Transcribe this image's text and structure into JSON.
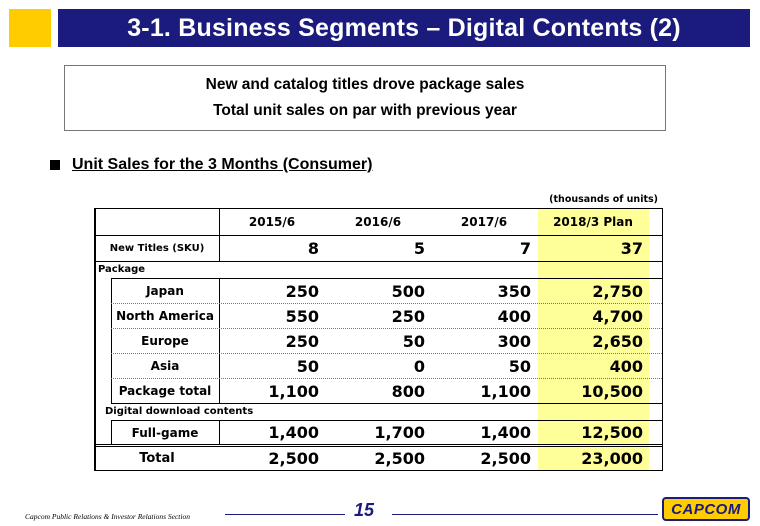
{
  "header": {
    "title": "3-1. Business Segments – Digital Contents (2)"
  },
  "headline": {
    "line1": "New and catalog titles drove package sales",
    "line2": "Total unit sales on par with previous year"
  },
  "section": {
    "label": "Unit Sales for the 3 Months (Consumer)"
  },
  "table": {
    "unit_note": "(thousands of units)",
    "columns": [
      "2015/6",
      "2016/6",
      "2017/6",
      "2018/3 Plan"
    ],
    "highlight_color": "#ffff99",
    "new_titles": {
      "label": "New Titles (SKU)",
      "values": [
        "8",
        "5",
        "7",
        "37"
      ]
    },
    "package_group": "Package",
    "package_rows": [
      {
        "label": "Japan",
        "values": [
          "250",
          "500",
          "350",
          "2,750"
        ]
      },
      {
        "label": "North America",
        "values": [
          "550",
          "250",
          "400",
          "4,700"
        ]
      },
      {
        "label": "Europe",
        "values": [
          "250",
          "50",
          "300",
          "2,650"
        ]
      },
      {
        "label": "Asia",
        "values": [
          "50",
          "0",
          "50",
          "400"
        ]
      },
      {
        "label": "Package total",
        "values": [
          "1,100",
          "800",
          "1,100",
          "10,500"
        ]
      }
    ],
    "digital_group": "Digital download contents",
    "digital_rows": [
      {
        "label": "Full-game",
        "values": [
          "1,400",
          "1,700",
          "1,400",
          "12,500"
        ]
      }
    ],
    "total": {
      "label": "Total",
      "values": [
        "2,500",
        "2,500",
        "2,500",
        "23,000"
      ]
    }
  },
  "footer": {
    "text": "Capcom Public Relations & Investor Relations Section",
    "page": "15",
    "logo": "CAPCOM",
    "accent": "#1b1b7e",
    "brand_yellow": "#ffcc00"
  }
}
